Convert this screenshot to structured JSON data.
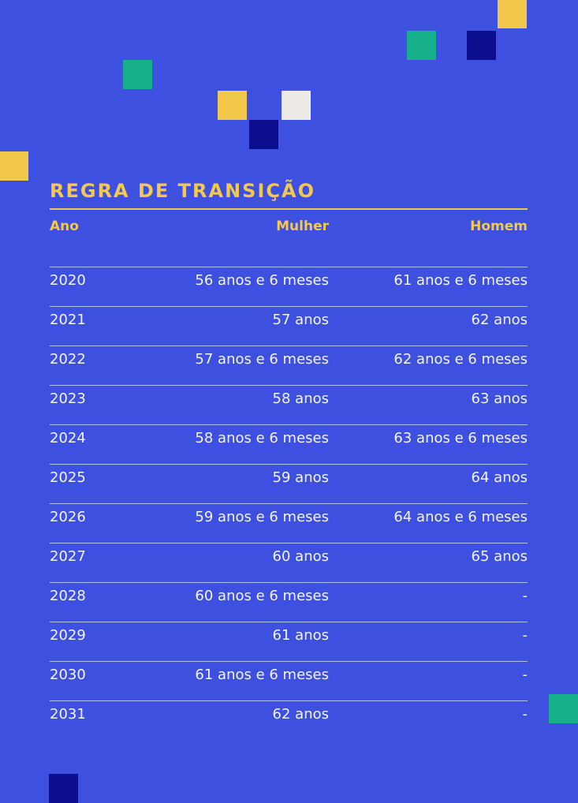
{
  "title": "REGRA DE TRANSIÇÃO",
  "headers": {
    "year": "Ano",
    "woman": "Mulher",
    "man": "Homem"
  },
  "rows": [
    {
      "year": "2020",
      "woman": "56 anos e 6 meses",
      "man": "61 anos e 6 meses"
    },
    {
      "year": "2021",
      "woman": "57 anos",
      "man": "62 anos"
    },
    {
      "year": "2022",
      "woman": "57 anos e 6 meses",
      "man": "62 anos e 6 meses"
    },
    {
      "year": "2023",
      "woman": "58 anos",
      "man": "63 anos"
    },
    {
      "year": "2024",
      "woman": "58 anos e 6 meses",
      "man": "63 anos e 6 meses"
    },
    {
      "year": "2025",
      "woman": "59 anos",
      "man": "64 anos"
    },
    {
      "year": "2026",
      "woman": "59 anos e 6 meses",
      "man": "64 anos e 6 meses"
    },
    {
      "year": "2027",
      "woman": "60 anos",
      "man": "65 anos"
    },
    {
      "year": "2028",
      "woman": "60 anos e 6 meses",
      "man": "-"
    },
    {
      "year": "2029",
      "woman": "61 anos",
      "man": "-"
    },
    {
      "year": "2030",
      "woman": "61 anos e 6 meses",
      "man": "-"
    },
    {
      "year": "2031",
      "woman": "62 anos",
      "man": "-"
    }
  ],
  "colors": {
    "background": "#3d50e0",
    "accent": "#f2c94c",
    "text": "#f4f5ff"
  }
}
